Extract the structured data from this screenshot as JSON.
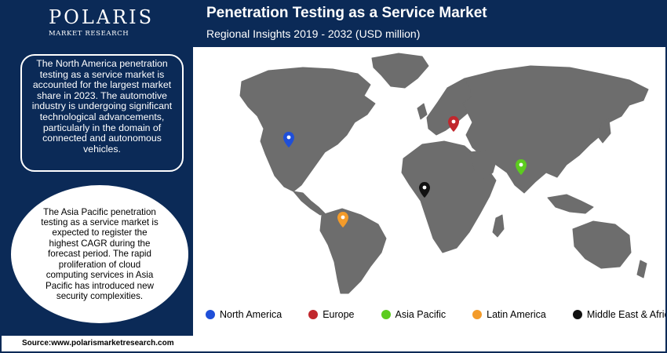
{
  "brand": {
    "name": "POLARIS",
    "tagline": "MARKET RESEARCH"
  },
  "header": {
    "title": "Penetration Testing as a Service Market",
    "subtitle": "Regional Insights 2019 - 2032 (USD million)"
  },
  "insights": {
    "north_america": "The North America penetration testing as a service market is accounted for the largest market share in 2023. The automotive industry is undergoing significant technological advancements, particularly in the domain of connected and autonomous vehicles.",
    "asia_pacific": "The Asia Pacific penetration testing as a service market is expected to register the highest CAGR during the forecast period. The rapid proliferation of cloud computing services in Asia Pacific has introduced new security complexities."
  },
  "legend": [
    {
      "label": "North America",
      "color": "#1f4fd8"
    },
    {
      "label": "Europe",
      "color": "#c1272d"
    },
    {
      "label": "Asia Pacific",
      "color": "#5ccc1f"
    },
    {
      "label": "Latin America",
      "color": "#f39b2a"
    },
    {
      "label": "Middle East & Africa",
      "color": "#111111"
    }
  ],
  "map": {
    "land_color": "#6d6d6d",
    "pins": [
      {
        "region": "North America",
        "color": "#1f4fd8"
      },
      {
        "region": "Europe",
        "color": "#c1272d"
      },
      {
        "region": "Asia Pacific",
        "color": "#5ccc1f"
      },
      {
        "region": "Latin America",
        "color": "#f39b2a"
      },
      {
        "region": "Middle East & Africa",
        "color": "#111111"
      }
    ]
  },
  "footer": {
    "source": "Source:www.polarismarketresearch.com"
  },
  "colors": {
    "navy": "#0b2a57"
  }
}
